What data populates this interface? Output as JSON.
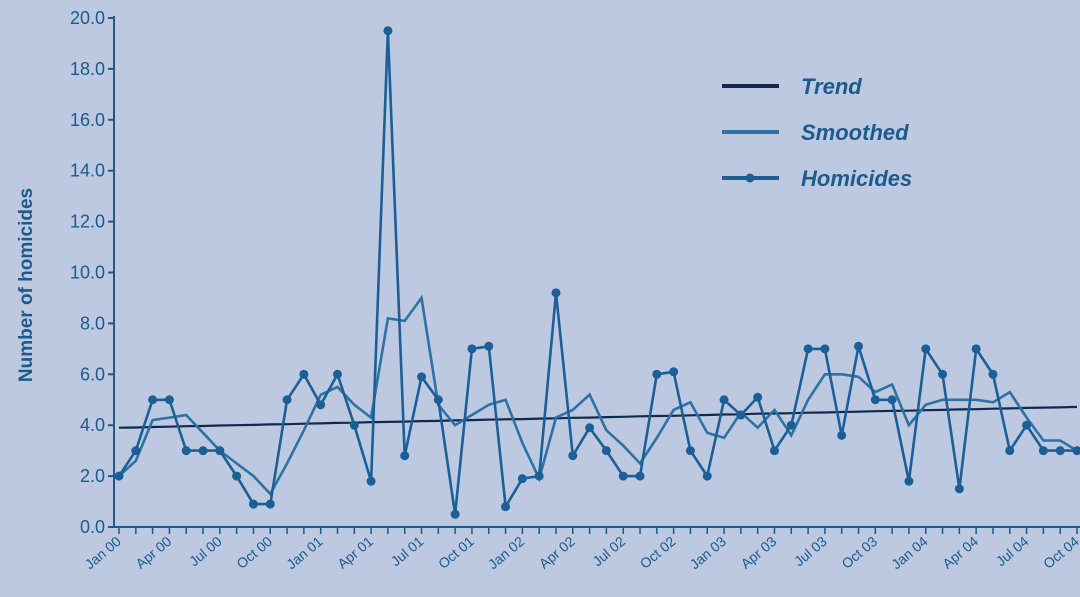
{
  "chart_data": {
    "type": "line",
    "title": "",
    "xlabel": "",
    "ylabel": "Number of homicides",
    "ylim": [
      0,
      20
    ],
    "y_ticks": [
      "0.0",
      "2.0",
      "4.0",
      "6.0",
      "8.0",
      "10.0",
      "12.0",
      "14.0",
      "16.0",
      "18.0",
      "20.0"
    ],
    "x_tick_labels": [
      "Jan 00",
      "Apr 00",
      "Jul 00",
      "Oct 00",
      "Jan 01",
      "Apr 01",
      "Jul 01",
      "Oct 01",
      "Jan 02",
      "Apr 02",
      "Jul 02",
      "Oct 02",
      "Jan 03",
      "Apr 03",
      "Jul 03",
      "Oct 03",
      "Jan 04",
      "Apr 04",
      "Jul 04",
      "Oct 04"
    ],
    "x": [
      "Jan 00",
      "Feb 00",
      "Mar 00",
      "Apr 00",
      "May 00",
      "Jun 00",
      "Jul 00",
      "Aug 00",
      "Sep 00",
      "Oct 00",
      "Nov 00",
      "Dec 00",
      "Jan 01",
      "Feb 01",
      "Mar 01",
      "Apr 01",
      "May 01",
      "Jun 01",
      "Jul 01",
      "Aug 01",
      "Sep 01",
      "Oct 01",
      "Nov 01",
      "Dec 01",
      "Jan 02",
      "Feb 02",
      "Mar 02",
      "Apr 02",
      "May 02",
      "Jun 02",
      "Jul 02",
      "Aug 02",
      "Sep 02",
      "Oct 02",
      "Nov 02",
      "Dec 02",
      "Jan 03",
      "Feb 03",
      "Mar 03",
      "Apr 03",
      "May 03",
      "Jun 03",
      "Jul 03",
      "Aug 03",
      "Sep 03",
      "Oct 03",
      "Nov 03",
      "Dec 03",
      "Jan 04",
      "Feb 04",
      "Mar 04",
      "Apr 04",
      "May 04",
      "Jun 04",
      "Jul 04",
      "Aug 04",
      "Sep 04",
      "Oct 04"
    ],
    "series": [
      {
        "name": "Trend",
        "color": "#12294f",
        "style": "line",
        "values": [
          3.9,
          3.91,
          3.93,
          3.94,
          3.96,
          3.97,
          3.99,
          4.0,
          4.01,
          4.03,
          4.04,
          4.06,
          4.07,
          4.09,
          4.1,
          4.12,
          4.13,
          4.14,
          4.16,
          4.17,
          4.19,
          4.2,
          4.22,
          4.23,
          4.24,
          4.26,
          4.27,
          4.29,
          4.3,
          4.32,
          4.33,
          4.35,
          4.36,
          4.37,
          4.39,
          4.4,
          4.42,
          4.43,
          4.45,
          4.46,
          4.47,
          4.49,
          4.5,
          4.52,
          4.53,
          4.55,
          4.56,
          4.57,
          4.59,
          4.6,
          4.62,
          4.63,
          4.65,
          4.66,
          4.68,
          4.69,
          4.7,
          4.72
        ]
      },
      {
        "name": "Smoothed",
        "color": "#2e72a3",
        "style": "line",
        "values": [
          2.0,
          2.6,
          4.2,
          4.3,
          4.4,
          3.7,
          3.0,
          2.5,
          2.0,
          1.3,
          2.5,
          3.8,
          5.2,
          5.5,
          4.8,
          4.3,
          8.2,
          8.1,
          9.0,
          4.8,
          4.0,
          4.4,
          4.8,
          5.0,
          3.3,
          1.9,
          4.3,
          4.6,
          5.2,
          3.8,
          3.2,
          2.5,
          3.5,
          4.6,
          4.9,
          3.7,
          3.5,
          4.5,
          3.9,
          4.6,
          3.6,
          5.0,
          6.0,
          6.0,
          5.9,
          5.3,
          5.6,
          4.0,
          4.8,
          5.0,
          5.0,
          5.0,
          4.9,
          5.3,
          4.3,
          3.4,
          3.4,
          3.0
        ]
      },
      {
        "name": "Homicides",
        "color": "#1b5f96",
        "style": "line-marker",
        "values": [
          2.0,
          3.0,
          5.0,
          5.0,
          3.0,
          3.0,
          3.0,
          2.0,
          0.9,
          0.9,
          5.0,
          6.0,
          4.8,
          6.0,
          4.0,
          1.8,
          19.5,
          2.8,
          5.9,
          5.0,
          0.5,
          7.0,
          7.1,
          0.8,
          1.9,
          2.0,
          9.2,
          2.8,
          3.9,
          3.0,
          2.0,
          2.0,
          6.0,
          6.1,
          3.0,
          2.0,
          5.0,
          4.4,
          5.1,
          3.0,
          4.0,
          7.0,
          7.0,
          3.6,
          7.1,
          5.0,
          5.0,
          1.8,
          7.0,
          6.0,
          1.5,
          7.0,
          6.0,
          3.0,
          4.0,
          3.0,
          3.0,
          3.0
        ]
      }
    ],
    "legend_position": "top-right",
    "grid": false
  }
}
